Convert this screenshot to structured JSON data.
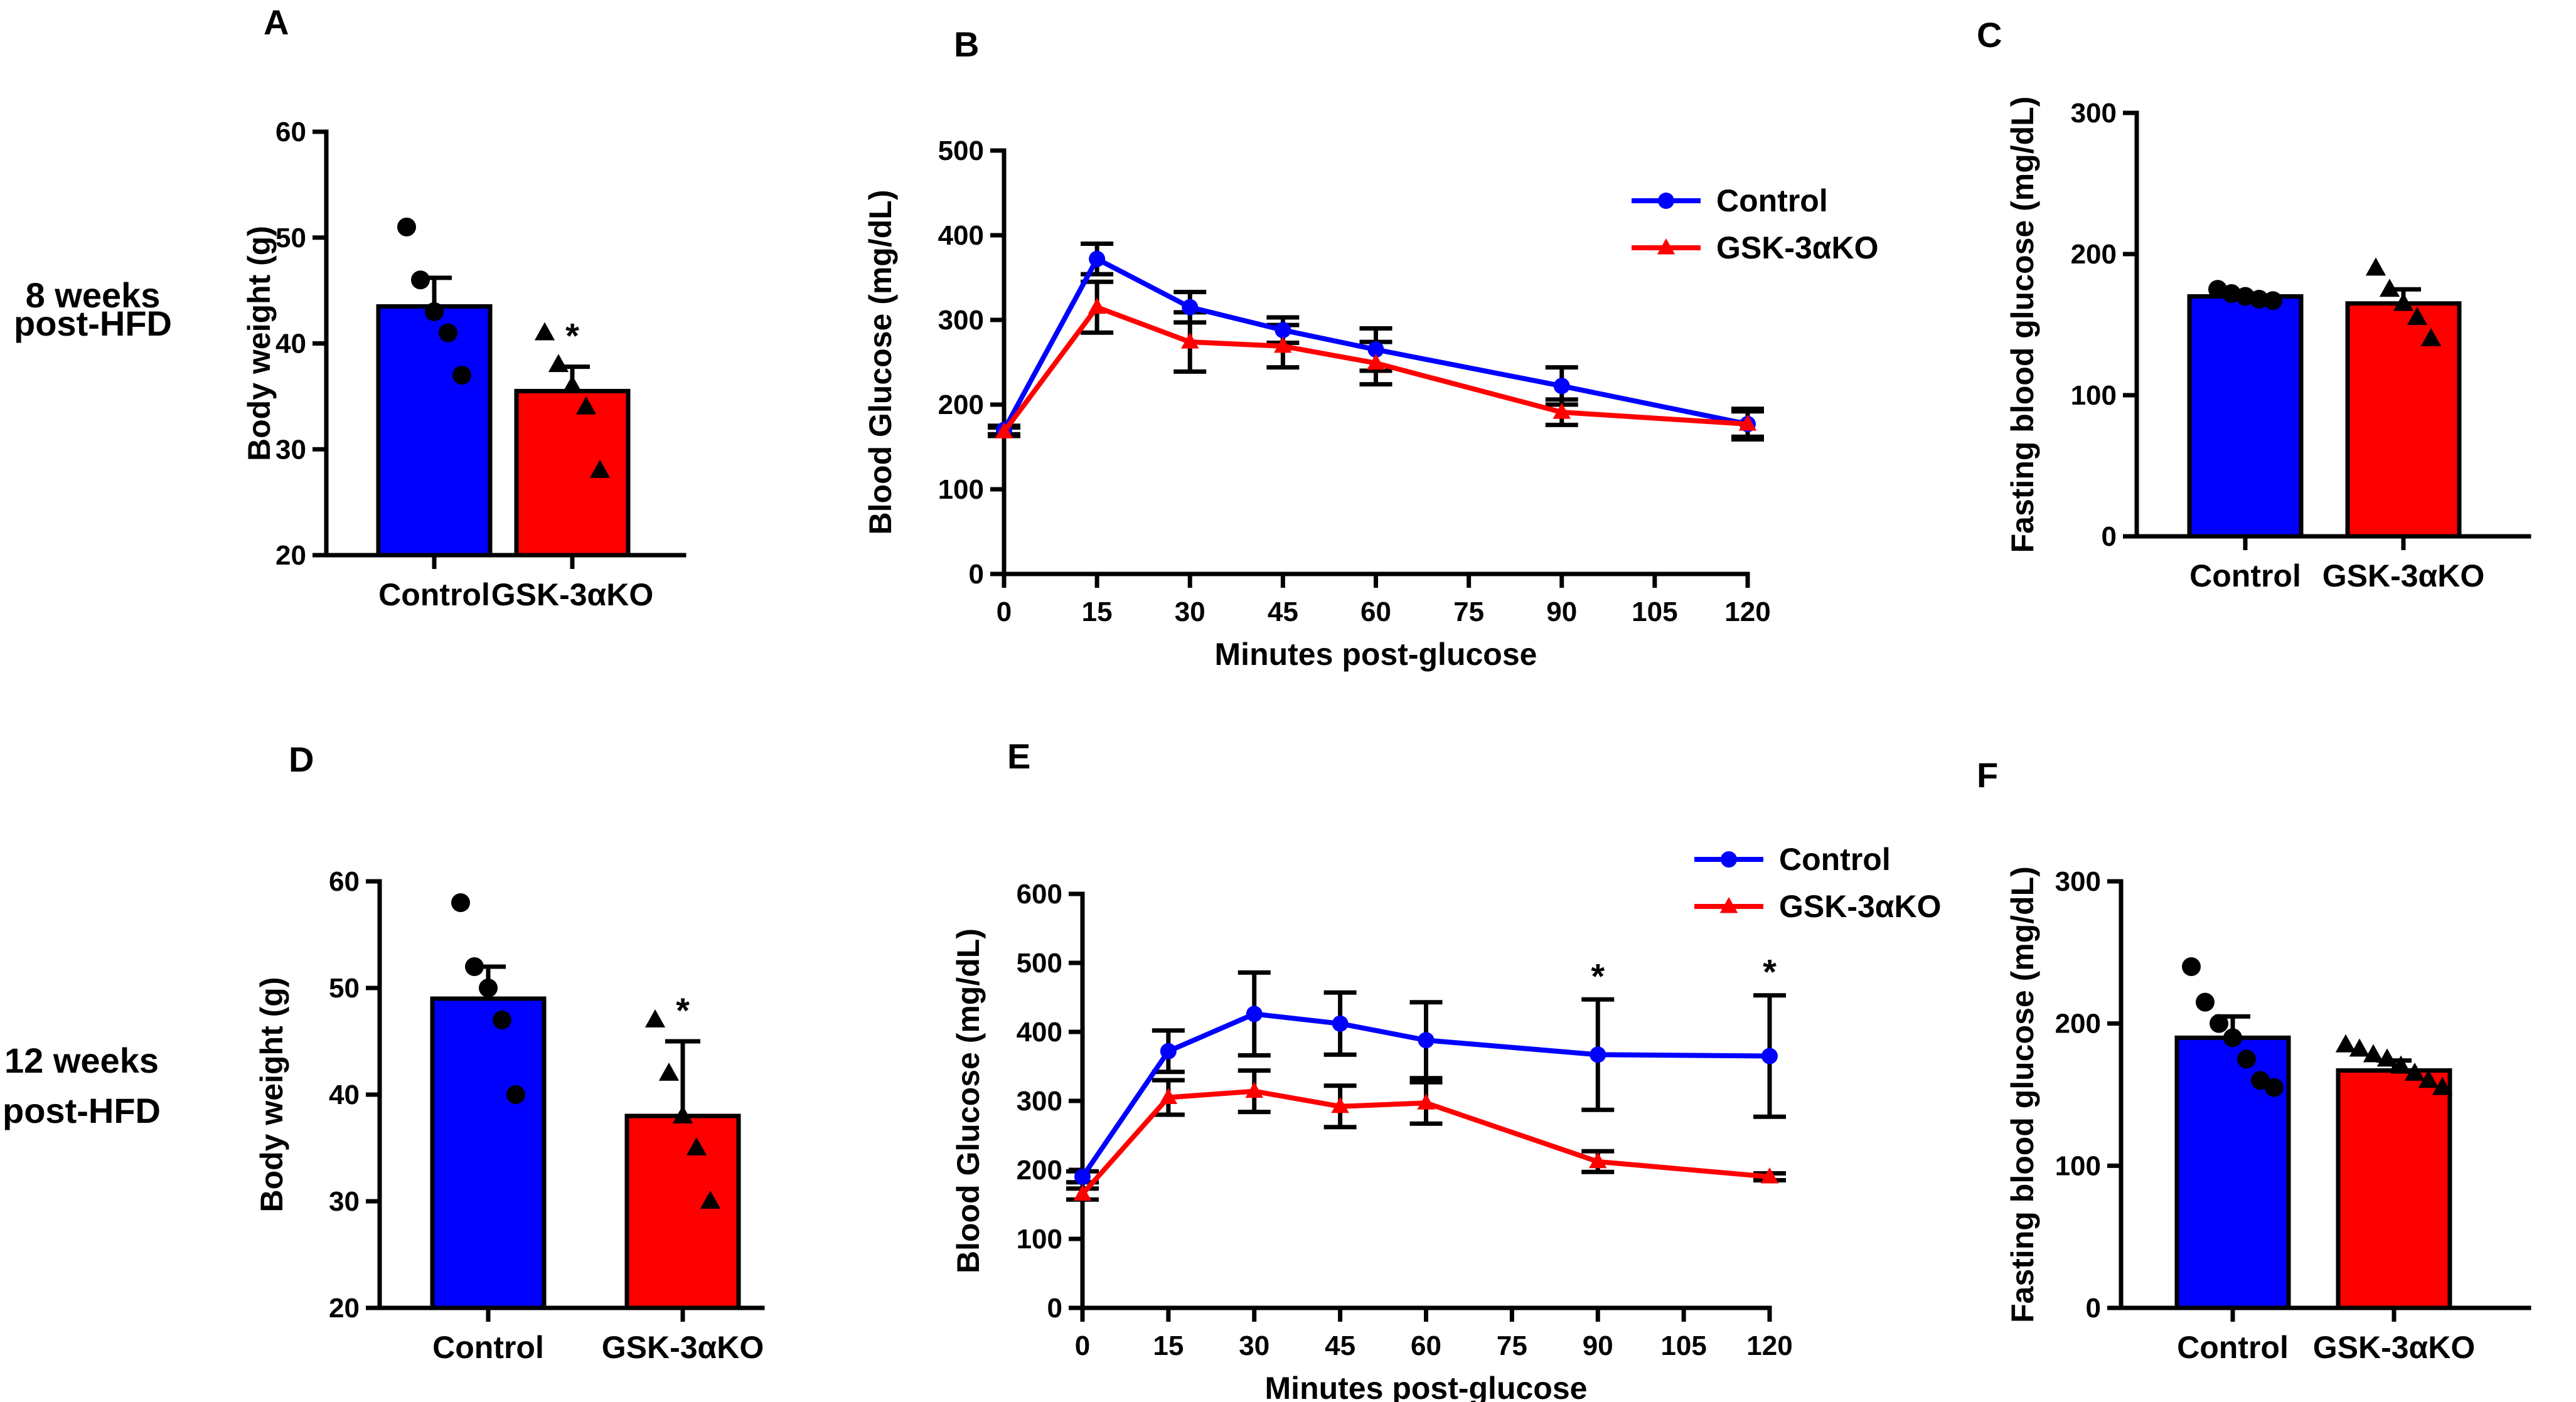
{
  "colors": {
    "control": "#0000ff",
    "ko": "#ff0000",
    "ink": "#000000"
  },
  "rows": [
    {
      "lines": [
        "8 weeks",
        "post-HFD"
      ]
    },
    {
      "lines": [
        "12 weeks",
        "post-HFD"
      ]
    }
  ],
  "chart_data": [
    {
      "panel": "A",
      "type": "bar",
      "ylabel": "Body weight (g)",
      "xlabel": "",
      "ylim": [
        20,
        60
      ],
      "yticks": [
        20,
        30,
        40,
        50,
        60
      ],
      "categories": [
        "Control",
        "GSK-3αKO"
      ],
      "values": [
        43.5,
        35.5
      ],
      "sem": [
        2.7,
        2.3
      ],
      "points": [
        [
          51,
          46,
          43,
          41,
          37
        ],
        [
          41,
          38,
          36,
          34,
          28
        ]
      ],
      "markers": [
        "circle",
        "triangle"
      ],
      "significance": [
        "",
        "*"
      ]
    },
    {
      "panel": "B",
      "type": "line",
      "ylabel": "Blood Glucose (mg/dL)",
      "xlabel": "Minutes post-glucose",
      "ylim": [
        0,
        500
      ],
      "yticks": [
        0,
        100,
        200,
        300,
        400,
        500
      ],
      "xlim": [
        0,
        120
      ],
      "xticks": [
        0,
        15,
        30,
        45,
        60,
        75,
        90,
        105,
        120
      ],
      "x": [
        0,
        15,
        30,
        45,
        60,
        90,
        120
      ],
      "series": [
        {
          "name": "Control",
          "marker": "circle",
          "values": [
            170,
            372,
            315,
            288,
            265,
            222,
            177
          ],
          "err": [
            5,
            18,
            18,
            15,
            25,
            22,
            15
          ]
        },
        {
          "name": "GSK-3αKO",
          "marker": "triangle",
          "values": [
            168,
            315,
            274,
            269,
            249,
            191,
            177
          ],
          "err": [
            5,
            30,
            35,
            25,
            25,
            15,
            18
          ]
        }
      ],
      "significance": [
        "",
        "",
        "",
        "",
        "",
        "",
        ""
      ],
      "legend": "top-right"
    },
    {
      "panel": "C",
      "type": "bar",
      "ylabel": "Fasting blood glucose (mg/dL)",
      "xlabel": "",
      "ylim": [
        0,
        300
      ],
      "yticks": [
        0,
        100,
        200,
        300
      ],
      "categories": [
        "Control",
        "GSK-3αKO"
      ],
      "values": [
        170,
        165
      ],
      "sem": [
        2,
        10
      ],
      "points": [
        [
          175,
          172,
          170,
          168,
          167
        ],
        [
          190,
          175,
          165,
          155,
          140
        ]
      ],
      "markers": [
        "circle",
        "triangle"
      ],
      "significance": [
        "",
        ""
      ]
    },
    {
      "panel": "D",
      "type": "bar",
      "ylabel": "Body weight (g)",
      "xlabel": "",
      "ylim": [
        20,
        60
      ],
      "yticks": [
        20,
        30,
        40,
        50,
        60
      ],
      "categories": [
        "Control",
        "GSK-3αKO"
      ],
      "values": [
        49,
        38
      ],
      "sem": [
        3,
        7
      ],
      "points": [
        [
          58,
          52,
          50,
          47,
          40
        ],
        [
          47,
          42,
          38,
          35,
          30
        ]
      ],
      "markers": [
        "circle",
        "triangle"
      ],
      "significance": [
        "",
        "*"
      ]
    },
    {
      "panel": "E",
      "type": "line",
      "ylabel": "Blood Glucose (mg/dL)",
      "xlabel": "Minutes post-glucose",
      "ylim": [
        0,
        600
      ],
      "yticks": [
        0,
        100,
        200,
        300,
        400,
        500,
        600
      ],
      "xlim": [
        0,
        120
      ],
      "xticks": [
        0,
        15,
        30,
        45,
        60,
        75,
        90,
        105,
        120
      ],
      "x": [
        0,
        15,
        30,
        45,
        60,
        90,
        120
      ],
      "series": [
        {
          "name": "Control",
          "marker": "circle",
          "values": [
            190,
            372,
            426,
            412,
            388,
            367,
            365
          ],
          "err": [
            8,
            30,
            60,
            45,
            55,
            80,
            88
          ]
        },
        {
          "name": "GSK-3αKO",
          "marker": "triangle",
          "values": [
            165,
            305,
            314,
            292,
            297,
            212,
            190
          ],
          "err": [
            8,
            25,
            30,
            30,
            30,
            15,
            5
          ]
        }
      ],
      "significance": [
        "",
        "",
        "",
        "",
        "",
        "*",
        "*"
      ],
      "legend": "top-right"
    },
    {
      "panel": "F",
      "type": "bar",
      "ylabel": "Fasting blood glucose (mg/dL)",
      "xlabel": "",
      "ylim": [
        0,
        300
      ],
      "yticks": [
        0,
        100,
        200,
        300
      ],
      "categories": [
        "Control",
        "GSK-3αKO"
      ],
      "values": [
        190,
        167
      ],
      "sem": [
        15,
        7
      ],
      "points": [
        [
          240,
          215,
          200,
          190,
          175,
          160,
          155
        ],
        [
          185,
          182,
          178,
          175,
          170,
          165,
          160,
          155
        ]
      ],
      "markers": [
        "circle",
        "triangle"
      ],
      "significance": [
        "",
        ""
      ]
    }
  ]
}
